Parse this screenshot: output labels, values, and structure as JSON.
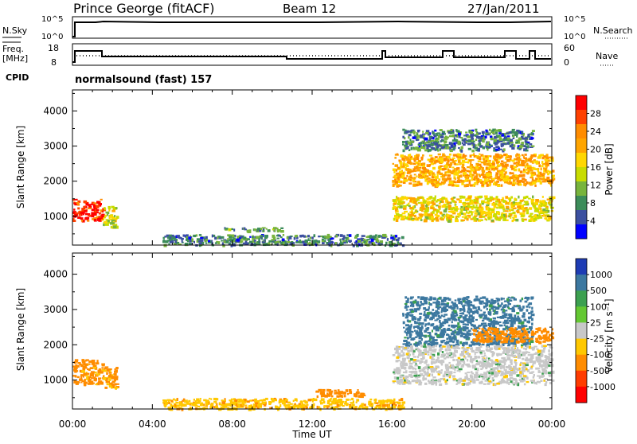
{
  "header": {
    "station": "Prince George (fitACF)",
    "beam": "Beam 12",
    "date": "27/Jan/2011"
  },
  "strip_sky": {
    "left_label": "N.Sky",
    "right_label": "N.Search",
    "ticks_left": [
      "10^5",
      "10^0"
    ],
    "ticks_right": [
      "10^5",
      "10^0"
    ]
  },
  "strip_freq": {
    "left_label_1": "Freq.",
    "left_label_2": "[MHz]",
    "right_label": "Nave",
    "ticks_left": [
      "18",
      "8"
    ],
    "ticks_right": [
      "60",
      "0"
    ]
  },
  "cpid": {
    "label": "CPID",
    "text": "normalsound (fast) 157"
  },
  "power_panel": {
    "ylabel": "Slant Range [km]",
    "yticks": [
      "4000",
      "3000",
      "2000",
      "1000"
    ],
    "colorbar_label": "Power [dB]",
    "colorbar_ticks": [
      "28",
      "24",
      "20",
      "16",
      "12",
      "8",
      "4"
    ],
    "colorbar_colors": [
      "#ff0000",
      "#ff4000",
      "#ff8c00",
      "#ffa500",
      "#ffd700",
      "#c8dc00",
      "#78b43c",
      "#3c8c5a",
      "#3c50a0",
      "#0000ff"
    ]
  },
  "velocity_panel": {
    "ylabel": "Slant Range [km]",
    "yticks": [
      "4000",
      "3000",
      "2000",
      "1000"
    ],
    "colorbar_label": "Velocity [m s⁻¹]",
    "colorbar_ticks": [
      "1000",
      "500",
      "100",
      "25",
      "-25",
      "-100",
      "-500",
      "-1000"
    ],
    "colorbar_colors": [
      "#1e3cb4",
      "#3c78a0",
      "#3ca050",
      "#64c832",
      "#c8c8c8",
      "#ffc800",
      "#ff8c00",
      "#ff3c00",
      "#ff0000"
    ]
  },
  "xaxis": {
    "label": "Time UT",
    "ticks": [
      "00:00",
      "04:00",
      "08:00",
      "12:00",
      "16:00",
      "20:00",
      "00:00"
    ]
  },
  "chart_data": [
    {
      "type": "heatmap",
      "title": "Power",
      "xlabel": "Time UT",
      "ylabel": "Slant Range [km]",
      "ylim": [
        180,
        4600
      ],
      "xlim_hours": [
        0,
        24
      ],
      "colorbar": {
        "label": "Power [dB]",
        "range": [
          0,
          30
        ],
        "ticks": [
          4,
          8,
          12,
          16,
          20,
          24,
          28
        ]
      },
      "echo_regions": [
        {
          "t": [
            0.0,
            1.5
          ],
          "range_km": [
            900,
            1500
          ],
          "power_db": 28
        },
        {
          "t": [
            1.5,
            2.2
          ],
          "range_km": [
            700,
            1300
          ],
          "power_db": 14
        },
        {
          "t": [
            7.5,
            10.5
          ],
          "range_km": [
            600,
            700
          ],
          "power_db": 8
        },
        {
          "t": [
            4.5,
            16.5
          ],
          "range_km": [
            200,
            500
          ],
          "power_db": 6
        },
        {
          "t": [
            16.0,
            24.0
          ],
          "range_km": [
            1900,
            2800
          ],
          "power_db": 20
        },
        {
          "t": [
            16.0,
            24.0
          ],
          "range_km": [
            900,
            1600
          ],
          "power_db": 16
        },
        {
          "t": [
            16.5,
            23.0
          ],
          "range_km": [
            2900,
            3500
          ],
          "power_db": 6
        }
      ]
    },
    {
      "type": "heatmap",
      "title": "Velocity",
      "xlabel": "Time UT",
      "ylabel": "Slant Range [km]",
      "ylim": [
        180,
        4600
      ],
      "xlim_hours": [
        0,
        24
      ],
      "colorbar": {
        "label": "Velocity [m s-1]",
        "range": [
          -1000,
          1000
        ],
        "ticks": [
          1000,
          500,
          100,
          25,
          -25,
          -100,
          -500,
          -1000
        ]
      },
      "echo_regions": [
        {
          "t": [
            0.0,
            1.5
          ],
          "range_km": [
            900,
            1600
          ],
          "velocity": -150
        },
        {
          "t": [
            1.5,
            2.2
          ],
          "range_km": [
            800,
            1400
          ],
          "velocity": -120
        },
        {
          "t": [
            12.0,
            14.5
          ],
          "range_km": [
            550,
            750
          ],
          "velocity": -300
        },
        {
          "t": [
            4.5,
            16.5
          ],
          "range_km": [
            200,
            500
          ],
          "velocity": -80
        },
        {
          "t": [
            16.5,
            23.0
          ],
          "range_km": [
            2000,
            3400
          ],
          "velocity": 150
        },
        {
          "t": [
            16.0,
            24.0
          ],
          "range_km": [
            900,
            2000
          ],
          "velocity": 0
        },
        {
          "t": [
            20.0,
            24.0
          ],
          "range_km": [
            2100,
            2500
          ],
          "velocity": -300
        }
      ]
    }
  ]
}
